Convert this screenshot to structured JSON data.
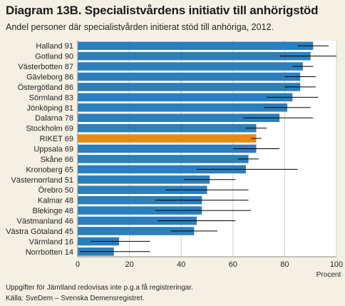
{
  "title": "Diagram 13B. Specialistvårdens initiativ till anhörigstöd",
  "subtitle": "Andel personer där specialistvården initierat stöd till anhöriga, 2012.",
  "notes": {
    "line1": "Uppgifter för Jämtland redovisas inte p.g.a få registreringar.",
    "line2": "Källa: SveDem – Svenska Demensregistret."
  },
  "colors": {
    "bar": "#2b7fbd",
    "highlight": "#e88a12",
    "plot_bg": "#ffffff",
    "page_bg": "#f5f0e4",
    "error_bar": "#000000"
  },
  "chart_data": {
    "type": "bar",
    "orientation": "horizontal",
    "title": "Diagram 13B. Specialistvårdens initiativ till anhörigstöd",
    "subtitle": "Andel personer där specialistvården initierat stöd till anhöriga, 2012.",
    "xlabel": "Procent",
    "xlim": [
      0,
      100
    ],
    "xticks": [
      0,
      20,
      40,
      60,
      80,
      100
    ],
    "grid": true,
    "highlight": "RIKET",
    "categories": [
      "Halland",
      "Gotland",
      "Västerbotten",
      "Gävleborg",
      "Östergötland",
      "Sörmland",
      "Jönköping",
      "Dalarna",
      "Stockholm",
      "RIKET",
      "Uppsala",
      "Skåne",
      "Kronoberg",
      "Västernorrland",
      "Örebro",
      "Kalmar",
      "Blekinge",
      "Västmanland",
      "Västra Götaland",
      "Värmland",
      "Norrbotten"
    ],
    "values": [
      91,
      90,
      87,
      86,
      86,
      83,
      81,
      78,
      69,
      69,
      69,
      66,
      65,
      51,
      50,
      48,
      48,
      46,
      45,
      16,
      14
    ],
    "ci_low": [
      85,
      78,
      83,
      80,
      80,
      73,
      72,
      64,
      65,
      67,
      60,
      62,
      46,
      41,
      34,
      30,
      30,
      31,
      36,
      5,
      1
    ],
    "ci_high": [
      97,
      100,
      91,
      92,
      92,
      93,
      90,
      91,
      73,
      71,
      78,
      70,
      85,
      61,
      66,
      66,
      67,
      61,
      54,
      28,
      28
    ]
  }
}
